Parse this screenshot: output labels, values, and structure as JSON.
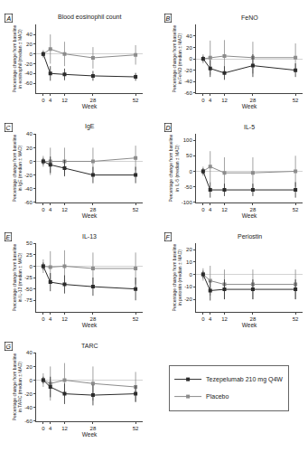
{
  "chart_data": [
    {
      "type": "line",
      "title": "Blood eosinophil count",
      "annotations": [
        "A"
      ],
      "xlabel": "Week",
      "ylabel": "Percentage change from baseline\nin eosinophil (median ± MAD)",
      "x": [
        0,
        4,
        12,
        28,
        52
      ],
      "xlim": [
        -4,
        56
      ],
      "xticks": [
        0,
        4,
        12,
        28,
        52
      ],
      "ylim": [
        -80,
        60
      ],
      "yticks": [
        -60,
        -40,
        -20,
        0,
        20,
        40
      ],
      "grid": false,
      "legend": "lower right",
      "marker": "square",
      "line_style": "solid",
      "series": [
        {
          "name": "Tezepelumab 210 mg Q4W",
          "color": "#2b2b2b",
          "values": [
            0,
            -40,
            -42,
            -45,
            -47
          ],
          "error_minus": [
            5,
            15,
            12,
            10,
            8
          ],
          "error_plus": [
            5,
            15,
            12,
            10,
            8
          ]
        },
        {
          "name": "Placebo",
          "color": "#8c8c8c",
          "values": [
            0,
            10,
            0,
            -8,
            -2
          ],
          "error_minus": [
            8,
            30,
            25,
            22,
            20
          ],
          "error_plus": [
            8,
            30,
            25,
            22,
            20
          ]
        }
      ]
    },
    {
      "type": "line",
      "title": "FeNO",
      "annotations": [
        "B"
      ],
      "xlabel": "Week",
      "ylabel": "Percentage change from baseline\nin FeNO (median ± MAD)",
      "x": [
        0,
        4,
        12,
        28,
        52
      ],
      "xlim": [
        -4,
        56
      ],
      "xticks": [
        0,
        4,
        12,
        28,
        52
      ],
      "ylim": [
        -60,
        60
      ],
      "yticks": [
        -60,
        -40,
        -20,
        0,
        20,
        40
      ],
      "grid": false,
      "legend": "lower right",
      "marker": "square",
      "line_style": "solid",
      "series": [
        {
          "name": "Tezepelumab 210 mg Q4W",
          "color": "#2b2b2b",
          "values": [
            0,
            -17,
            -25,
            -12,
            -20
          ],
          "error_minus": [
            5,
            15,
            12,
            20,
            12
          ],
          "error_plus": [
            5,
            15,
            12,
            20,
            12
          ]
        },
        {
          "name": "Placebo",
          "color": "#8c8c8c",
          "values": [
            0,
            2,
            5,
            2,
            2
          ],
          "error_minus": [
            8,
            30,
            28,
            28,
            25
          ],
          "error_plus": [
            8,
            30,
            28,
            28,
            25
          ]
        }
      ]
    },
    {
      "type": "line",
      "title": "IgE",
      "annotations": [
        "C"
      ],
      "xlabel": "Week",
      "ylabel": "Percentage change from baseline\nin IgE (median ± MAD)",
      "x": [
        0,
        4,
        12,
        28,
        52
      ],
      "xlim": [
        -4,
        56
      ],
      "xticks": [
        0,
        4,
        12,
        28,
        52
      ],
      "ylim": [
        -60,
        40
      ],
      "yticks": [
        -60,
        -40,
        -20,
        0,
        20,
        40
      ],
      "grid": false,
      "legend": "lower right",
      "marker": "square",
      "line_style": "solid",
      "series": [
        {
          "name": "Tezepelumab 210 mg Q4W",
          "color": "#2b2b2b",
          "values": [
            0,
            -5,
            -10,
            -20,
            -20
          ],
          "error_minus": [
            5,
            12,
            12,
            12,
            12
          ],
          "error_plus": [
            5,
            12,
            12,
            12,
            12
          ]
        },
        {
          "name": "Placebo",
          "color": "#8c8c8c",
          "values": [
            0,
            0,
            0,
            0,
            5
          ],
          "error_minus": [
            8,
            20,
            20,
            20,
            18
          ],
          "error_plus": [
            8,
            20,
            20,
            20,
            18
          ]
        }
      ]
    },
    {
      "type": "line",
      "title": "IL-5",
      "annotations": [
        "D"
      ],
      "xlabel": "Week",
      "ylabel": "Percentage change from baseline\nin IL-5 (median ± MAD)",
      "x": [
        0,
        4,
        12,
        28,
        52
      ],
      "xlim": [
        -4,
        56
      ],
      "xticks": [
        0,
        4,
        12,
        28,
        52
      ],
      "ylim": [
        -100,
        120
      ],
      "yticks": [
        -100,
        -50,
        0,
        50,
        100
      ],
      "grid": false,
      "legend": "lower right",
      "marker": "square",
      "line_style": "solid",
      "series": [
        {
          "name": "Tezepelumab 210 mg Q4W",
          "color": "#2b2b2b",
          "values": [
            0,
            -60,
            -60,
            -60,
            -60
          ],
          "error_minus": [
            10,
            25,
            20,
            20,
            25
          ],
          "error_plus": [
            10,
            25,
            20,
            20,
            25
          ]
        },
        {
          "name": "Placebo",
          "color": "#8c8c8c",
          "values": [
            0,
            15,
            -5,
            -5,
            0
          ],
          "error_minus": [
            15,
            50,
            50,
            50,
            50
          ],
          "error_plus": [
            15,
            50,
            50,
            50,
            50
          ]
        }
      ]
    },
    {
      "type": "line",
      "title": "IL-13",
      "annotations": [
        "E"
      ],
      "xlabel": "Week",
      "ylabel": "Percentage change from baseline\nin IL-13 (median ± MAD)",
      "x": [
        0,
        4,
        12,
        28,
        52
      ],
      "xlim": [
        -4,
        56
      ],
      "xticks": [
        0,
        4,
        12,
        28,
        52
      ],
      "ylim": [
        -100,
        50
      ],
      "yticks": [
        -75,
        -50,
        -25,
        0,
        25,
        50
      ],
      "grid": false,
      "legend": "lower right",
      "marker": "square",
      "line_style": "solid",
      "series": [
        {
          "name": "Tezepelumab 210 mg Q4W",
          "color": "#2b2b2b",
          "values": [
            0,
            -35,
            -40,
            -45,
            -50
          ],
          "error_minus": [
            8,
            20,
            20,
            20,
            25
          ],
          "error_plus": [
            8,
            20,
            20,
            20,
            25
          ]
        },
        {
          "name": "Placebo",
          "color": "#8c8c8c",
          "values": [
            0,
            -2,
            0,
            -5,
            -5
          ],
          "error_minus": [
            15,
            35,
            35,
            35,
            35
          ],
          "error_plus": [
            15,
            35,
            35,
            35,
            35
          ]
        }
      ]
    },
    {
      "type": "line",
      "title": "Periostin",
      "annotations": [
        "F"
      ],
      "xlabel": "Week",
      "ylabel": "Percentage change from baseline\nin periostin (median ± MAD)",
      "x": [
        0,
        4,
        12,
        28,
        52
      ],
      "xlim": [
        -4,
        56
      ],
      "xticks": [
        0,
        4,
        12,
        28,
        52
      ],
      "ylim": [
        -30,
        25
      ],
      "yticks": [
        -20,
        -10,
        0,
        10,
        20
      ],
      "grid": false,
      "legend": "lower right",
      "marker": "square",
      "line_style": "solid",
      "series": [
        {
          "name": "Tezepelumab 210 mg Q4W",
          "color": "#2b2b2b",
          "values": [
            0,
            -13,
            -12,
            -12,
            -12
          ],
          "error_minus": [
            3,
            8,
            8,
            8,
            8
          ],
          "error_plus": [
            3,
            8,
            8,
            8,
            8
          ]
        },
        {
          "name": "Placebo",
          "color": "#8c8c8c",
          "values": [
            0,
            -5,
            -8,
            -8,
            -8
          ],
          "error_minus": [
            5,
            12,
            12,
            12,
            12
          ],
          "error_plus": [
            5,
            12,
            12,
            12,
            12
          ]
        }
      ]
    },
    {
      "type": "line",
      "title": "TARC",
      "annotations": [
        "G"
      ],
      "xlabel": "Week",
      "ylabel": "Percentage change from baseline\nin TARC (median ± MAD)",
      "x": [
        0,
        4,
        12,
        28,
        52
      ],
      "xlim": [
        -4,
        56
      ],
      "xticks": [
        0,
        4,
        12,
        28,
        52
      ],
      "ylim": [
        -60,
        40
      ],
      "yticks": [
        -60,
        -40,
        -20,
        0,
        20,
        40
      ],
      "grid": false,
      "legend": "lower right",
      "marker": "square",
      "line_style": "solid",
      "series": [
        {
          "name": "Tezepelumab 210 mg Q4W",
          "color": "#2b2b2b",
          "values": [
            0,
            -10,
            -20,
            -22,
            -20
          ],
          "error_minus": [
            5,
            15,
            15,
            15,
            12
          ],
          "error_plus": [
            5,
            15,
            15,
            15,
            12
          ]
        },
        {
          "name": "Placebo",
          "color": "#8c8c8c",
          "values": [
            0,
            -5,
            0,
            -5,
            -10
          ],
          "error_minus": [
            10,
            25,
            25,
            25,
            22
          ],
          "error_plus": [
            10,
            25,
            25,
            25,
            22
          ]
        }
      ]
    }
  ]
}
